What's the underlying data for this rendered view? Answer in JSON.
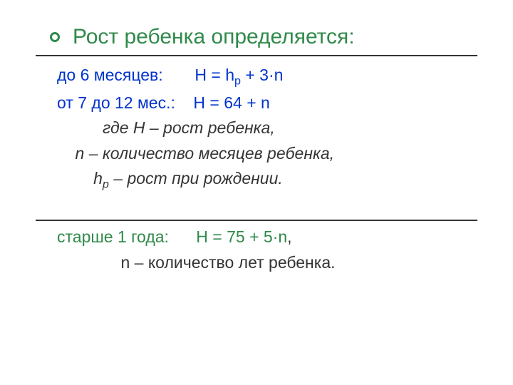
{
  "colors": {
    "title": "#2f8a4a",
    "bullet_border": "#2f8a4a",
    "hr": "#333333",
    "blue": "#0033cc",
    "green": "#2f8a4a",
    "black": "#333333"
  },
  "title": "Рост ребенка определяется:",
  "lines": {
    "l1_prefix": "до 6 месяцев:       Н = h",
    "l1_sub": "р",
    "l1_suffix": " + 3·n",
    "l2": "от 7 до 12 мес.:    Н = 64 + n",
    "l3": "          где Н – рост ребенка,",
    "l4": "    n – количество месяцев ребенка,",
    "l5_prefix": "        h",
    "l5_sub": "р",
    "l5_suffix": " – рост при рождении.",
    "l6_prefix": "старше 1 года:      Н = 75 + 5·n",
    "l6_comma": ",",
    "l7_indent": "              ",
    "l7_text": "n – количество лет ребенка."
  }
}
